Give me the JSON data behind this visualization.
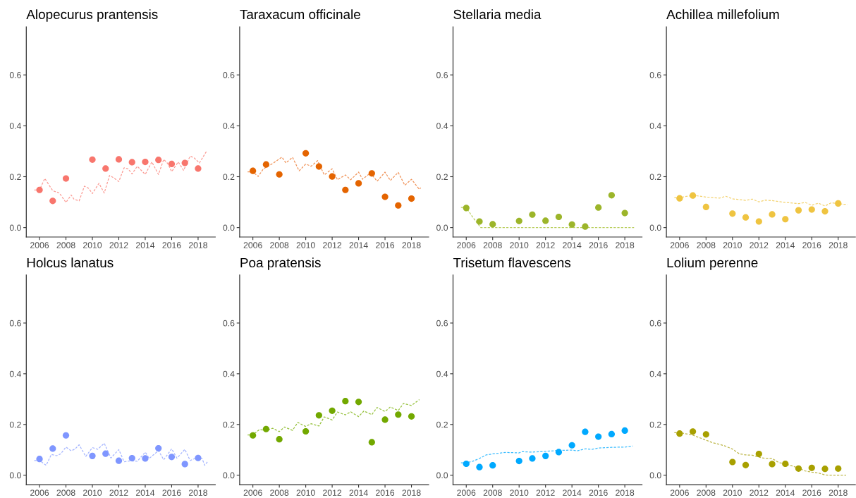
{
  "chart_data": [
    {
      "type": "scatter",
      "title": "Alopecurus prantensis",
      "xlim": [
        2005.0,
        2019.3
      ],
      "ylim": [
        -0.037,
        0.789
      ],
      "xticks": [
        2006,
        2008,
        2010,
        2012,
        2014,
        2016,
        2018
      ],
      "yticks": [
        {
          "value": 0,
          "label": "0.0"
        },
        {
          "value": 0.2,
          "label": "0.2"
        },
        {
          "value": 0.4,
          "label": "0.4"
        },
        {
          "value": 0.6,
          "label": "0.6"
        }
      ],
      "series": [
        {
          "type": "line",
          "line_style": "dashed",
          "color": "#fb9c95",
          "x": [
            2005.6,
            2006,
            2006.4,
            2007,
            2007.5,
            2008,
            2008.4,
            2008.6,
            2009,
            2009.4,
            2009.7,
            2010,
            2010.5,
            2010.9,
            2011.3,
            2011.6,
            2012,
            2012.4,
            2012.7,
            2013,
            2013.4,
            2014,
            2014.5,
            2015,
            2015.4,
            2015.7,
            2016,
            2016.5,
            2016.9,
            2017.4,
            2017.7,
            2018.1,
            2018.6,
            2018.7
          ],
          "values": [
            0.148,
            0.148,
            0.193,
            0.145,
            0.136,
            0.099,
            0.128,
            0.112,
            0.105,
            0.163,
            0.155,
            0.134,
            0.174,
            0.136,
            0.205,
            0.196,
            0.181,
            0.235,
            0.231,
            0.211,
            0.241,
            0.209,
            0.258,
            0.209,
            0.268,
            0.252,
            0.22,
            0.258,
            0.225,
            0.281,
            0.274,
            0.254,
            0.297,
            0.293
          ]
        },
        {
          "marker": "circle",
          "color": "#f8766d",
          "x": [
            2006,
            2007,
            2008,
            2010,
            2011,
            2012,
            2013,
            2014,
            2015,
            2016,
            2017,
            2018
          ],
          "values": [
            0.148,
            0.105,
            0.193,
            0.267,
            0.232,
            0.268,
            0.257,
            0.258,
            0.266,
            0.25,
            0.254,
            0.232
          ]
        }
      ]
    },
    {
      "type": "scatter",
      "title": "Taraxacum officinale",
      "xlim": [
        2005.0,
        2019.3
      ],
      "ylim": [
        -0.037,
        0.789
      ],
      "xticks": [
        2006,
        2008,
        2010,
        2012,
        2014,
        2016,
        2018
      ],
      "yticks": [
        {
          "value": 0,
          "label": "0.0"
        },
        {
          "value": 0.2,
          "label": "0.2"
        },
        {
          "value": 0.4,
          "label": "0.4"
        },
        {
          "value": 0.6,
          "label": "0.6"
        }
      ],
      "series": [
        {
          "type": "line",
          "line_style": "dashed",
          "color": "#f0945a",
          "x": [
            2005.6,
            2006,
            2006.4,
            2006.8,
            2007.5,
            2008.2,
            2008.5,
            2009,
            2009.5,
            2010,
            2010.4,
            2010.9,
            2011.4,
            2012,
            2012.4,
            2013,
            2013.4,
            2014,
            2014.3,
            2014.9,
            2015.4,
            2016,
            2016.4,
            2017,
            2017.5,
            2018,
            2018.6,
            2018.7
          ],
          "values": [
            0.219,
            0.219,
            0.201,
            0.231,
            0.252,
            0.277,
            0.254,
            0.276,
            0.223,
            0.25,
            0.241,
            0.263,
            0.207,
            0.231,
            0.188,
            0.207,
            0.188,
            0.218,
            0.19,
            0.215,
            0.182,
            0.218,
            0.185,
            0.217,
            0.166,
            0.19,
            0.15,
            0.157
          ]
        },
        {
          "marker": "circle",
          "color": "#e46400",
          "x": [
            2006,
            2007,
            2008,
            2010,
            2011,
            2012,
            2013,
            2014,
            2015,
            2016,
            2017,
            2018
          ],
          "values": [
            0.223,
            0.248,
            0.209,
            0.292,
            0.24,
            0.201,
            0.148,
            0.174,
            0.213,
            0.121,
            0.087,
            0.114
          ]
        }
      ]
    },
    {
      "type": "scatter",
      "title": "Stellaria media",
      "xlim": [
        2005.0,
        2019.3
      ],
      "ylim": [
        -0.037,
        0.789
      ],
      "xticks": [
        2006,
        2008,
        2010,
        2012,
        2014,
        2016,
        2018
      ],
      "yticks": [
        {
          "value": 0,
          "label": "0.0"
        },
        {
          "value": 0.2,
          "label": "0.2"
        },
        {
          "value": 0.4,
          "label": "0.4"
        },
        {
          "value": 0.6,
          "label": "0.6"
        }
      ],
      "series": [
        {
          "type": "line",
          "line_style": "dashed",
          "color": "#b9ce5e",
          "x": [
            2005.6,
            2006,
            2006.5,
            2007.1,
            2010,
            2014,
            2018.7
          ],
          "values": [
            0.079,
            0.079,
            0.04,
            0.0,
            0.0,
            0.0,
            0.0
          ]
        },
        {
          "marker": "circle",
          "color": "#9cb52a",
          "x": [
            2006,
            2007,
            2008,
            2010,
            2011,
            2012,
            2013,
            2014,
            2015,
            2016,
            2017,
            2018
          ],
          "values": [
            0.077,
            0.024,
            0.013,
            0.026,
            0.051,
            0.027,
            0.042,
            0.012,
            0.004,
            0.079,
            0.127,
            0.057
          ]
        }
      ]
    },
    {
      "type": "scatter",
      "title": "Achillea millefolium",
      "xlim": [
        2005.0,
        2019.3
      ],
      "ylim": [
        -0.037,
        0.789
      ],
      "xticks": [
        2006,
        2008,
        2010,
        2012,
        2014,
        2016,
        2018
      ],
      "yticks": [
        {
          "value": 0,
          "label": "0.0"
        },
        {
          "value": 0.2,
          "label": "0.2"
        },
        {
          "value": 0.4,
          "label": "0.4"
        },
        {
          "value": 0.6,
          "label": "0.6"
        }
      ],
      "series": [
        {
          "type": "line",
          "line_style": "dashed",
          "color": "#f3d26f",
          "x": [
            2005.6,
            2006,
            2007,
            2008,
            2009,
            2009.5,
            2010,
            2011,
            2011.5,
            2012,
            2012.5,
            2013,
            2014,
            2015,
            2015.5,
            2016,
            2016.5,
            2017,
            2017.5,
            2018,
            2018.7
          ],
          "values": [
            0.118,
            0.118,
            0.127,
            0.12,
            0.116,
            0.123,
            0.113,
            0.107,
            0.112,
            0.101,
            0.108,
            0.106,
            0.099,
            0.094,
            0.099,
            0.088,
            0.096,
            0.085,
            0.098,
            0.093,
            0.091
          ]
        },
        {
          "marker": "circle",
          "color": "#efc441",
          "x": [
            2006,
            2007,
            2008,
            2010,
            2011,
            2012,
            2013,
            2014,
            2015,
            2016,
            2017,
            2018
          ],
          "values": [
            0.115,
            0.126,
            0.081,
            0.055,
            0.04,
            0.024,
            0.052,
            0.033,
            0.068,
            0.071,
            0.064,
            0.095
          ]
        }
      ]
    },
    {
      "type": "scatter",
      "title": "Holcus lanatus",
      "xlim": [
        2005.0,
        2019.3
      ],
      "ylim": [
        -0.037,
        0.789
      ],
      "xticks": [
        2006,
        2008,
        2010,
        2012,
        2014,
        2016,
        2018
      ],
      "yticks": [
        {
          "value": 0,
          "label": "0.0"
        },
        {
          "value": 0.2,
          "label": "0.2"
        },
        {
          "value": 0.4,
          "label": "0.4"
        },
        {
          "value": 0.6,
          "label": "0.6"
        }
      ],
      "series": [
        {
          "type": "line",
          "line_style": "dashed",
          "color": "#a5b5ff",
          "x": [
            2005.6,
            2006,
            2006.5,
            2006.9,
            2007.3,
            2007.6,
            2008,
            2008.4,
            2008.7,
            2009,
            2009.5,
            2010,
            2010.4,
            2010.9,
            2011.4,
            2012,
            2012.4,
            2012.9,
            2013.4,
            2014,
            2014.3,
            2015,
            2015.4,
            2016,
            2016.4,
            2017,
            2017.4,
            2017.9,
            2018.3,
            2018.5,
            2018.7
          ],
          "values": [
            0.058,
            0.058,
            0.039,
            0.082,
            0.077,
            0.084,
            0.111,
            0.096,
            0.104,
            0.12,
            0.074,
            0.109,
            0.102,
            0.126,
            0.068,
            0.101,
            0.053,
            0.057,
            0.055,
            0.091,
            0.066,
            0.097,
            0.061,
            0.104,
            0.067,
            0.102,
            0.058,
            0.069,
            0.066,
            0.039,
            0.052
          ]
        },
        {
          "marker": "circle",
          "color": "#7f96ff",
          "x": [
            2006,
            2007,
            2008,
            2010,
            2011,
            2012,
            2013,
            2014,
            2015,
            2016,
            2017,
            2018
          ],
          "values": [
            0.064,
            0.105,
            0.157,
            0.076,
            0.085,
            0.057,
            0.067,
            0.066,
            0.106,
            0.072,
            0.044,
            0.068
          ]
        }
      ]
    },
    {
      "type": "scatter",
      "title": "Poa pratensis",
      "xlim": [
        2005.0,
        2019.3
      ],
      "ylim": [
        -0.037,
        0.789
      ],
      "xticks": [
        2006,
        2008,
        2010,
        2012,
        2014,
        2016,
        2018
      ],
      "yticks": [
        {
          "value": 0,
          "label": "0.0"
        },
        {
          "value": 0.2,
          "label": "0.2"
        },
        {
          "value": 0.4,
          "label": "0.4"
        },
        {
          "value": 0.6,
          "label": "0.6"
        }
      ],
      "series": [
        {
          "type": "line",
          "line_style": "dashed",
          "color": "#97c23f",
          "x": [
            2005.6,
            2006,
            2006.5,
            2007,
            2007.5,
            2008,
            2008.4,
            2009,
            2009.4,
            2010,
            2010.4,
            2011,
            2011.4,
            2012,
            2012.4,
            2013,
            2013.4,
            2014,
            2014.4,
            2015,
            2015.4,
            2016,
            2016.4,
            2017,
            2017.4,
            2018,
            2018.6
          ],
          "values": [
            0.159,
            0.159,
            0.18,
            0.177,
            0.185,
            0.172,
            0.19,
            0.177,
            0.208,
            0.192,
            0.203,
            0.194,
            0.23,
            0.218,
            0.249,
            0.238,
            0.25,
            0.231,
            0.253,
            0.239,
            0.267,
            0.251,
            0.269,
            0.255,
            0.283,
            0.275,
            0.298
          ]
        },
        {
          "marker": "circle",
          "color": "#72a800",
          "x": [
            2006,
            2007,
            2008,
            2010,
            2011,
            2012,
            2013,
            2014,
            2015,
            2016,
            2017,
            2018
          ],
          "values": [
            0.157,
            0.182,
            0.142,
            0.173,
            0.236,
            0.254,
            0.292,
            0.289,
            0.13,
            0.219,
            0.239,
            0.232
          ]
        }
      ]
    },
    {
      "type": "scatter",
      "title": "Trisetum flavescens",
      "xlim": [
        2005.0,
        2019.3
      ],
      "ylim": [
        -0.037,
        0.789
      ],
      "xticks": [
        2006,
        2008,
        2010,
        2012,
        2014,
        2016,
        2018
      ],
      "yticks": [
        {
          "value": 0,
          "label": "0.0"
        },
        {
          "value": 0.2,
          "label": "0.2"
        },
        {
          "value": 0.4,
          "label": "0.4"
        },
        {
          "value": 0.6,
          "label": "0.6"
        }
      ],
      "series": [
        {
          "type": "line",
          "line_style": "dashed",
          "color": "#3dbdff",
          "x": [
            2005.6,
            2006,
            2006.5,
            2007,
            2007.5,
            2008,
            2009,
            2010,
            2010.2,
            2011,
            2012,
            2013,
            2014,
            2014.4,
            2015,
            2015.5,
            2016,
            2017,
            2018,
            2018.6
          ],
          "values": [
            0.049,
            0.049,
            0.055,
            0.066,
            0.08,
            0.084,
            0.09,
            0.088,
            0.093,
            0.091,
            0.094,
            0.098,
            0.099,
            0.096,
            0.104,
            0.102,
            0.107,
            0.11,
            0.111,
            0.115
          ]
        },
        {
          "marker": "circle",
          "color": "#00a9ff",
          "x": [
            2006,
            2007,
            2008,
            2010,
            2011,
            2012,
            2013,
            2014,
            2015,
            2016,
            2017,
            2018
          ],
          "values": [
            0.045,
            0.032,
            0.039,
            0.056,
            0.066,
            0.076,
            0.091,
            0.118,
            0.171,
            0.152,
            0.162,
            0.176
          ]
        }
      ]
    },
    {
      "type": "scatter",
      "title": "Lolium perenne",
      "xlim": [
        2005.0,
        2019.3
      ],
      "ylim": [
        -0.037,
        0.789
      ],
      "xticks": [
        2006,
        2008,
        2010,
        2012,
        2014,
        2016,
        2018
      ],
      "yticks": [
        {
          "value": 0,
          "label": "0.0"
        },
        {
          "value": 0.2,
          "label": "0.2"
        },
        {
          "value": 0.4,
          "label": "0.4"
        },
        {
          "value": 0.6,
          "label": "0.6"
        }
      ],
      "series": [
        {
          "type": "line",
          "line_style": "dashed",
          "color": "#bdb74a",
          "x": [
            2005.6,
            2006,
            2007,
            2008,
            2008.5,
            2009,
            2009.5,
            2010,
            2010.5,
            2011,
            2011.5,
            2012,
            2012.5,
            2013,
            2013.5,
            2014,
            2014.5,
            2015,
            2015.5,
            2016,
            2016.5,
            2017,
            2017.5,
            2018.6
          ],
          "values": [
            0.168,
            0.168,
            0.158,
            0.138,
            0.128,
            0.122,
            0.114,
            0.103,
            0.085,
            0.08,
            0.079,
            0.071,
            0.066,
            0.066,
            0.05,
            0.044,
            0.037,
            0.028,
            0.017,
            0.012,
            0.009,
            0.001,
            0.0,
            0.0
          ]
        },
        {
          "marker": "circle",
          "color": "#a8a000",
          "x": [
            2006,
            2007,
            2008,
            2010,
            2011,
            2012,
            2013,
            2014,
            2015,
            2016,
            2017,
            2018
          ],
          "values": [
            0.164,
            0.172,
            0.161,
            0.052,
            0.04,
            0.084,
            0.044,
            0.045,
            0.026,
            0.029,
            0.025,
            0.026
          ]
        }
      ]
    }
  ]
}
